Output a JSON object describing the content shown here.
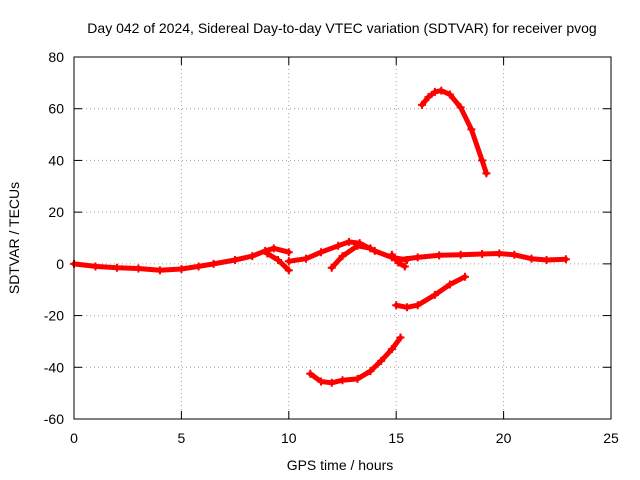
{
  "chart_data": {
    "type": "scatter",
    "title": "Day 042 of 2024, Sidereal Day-to-day VTEC variation (SDTVAR) for receiver pvog",
    "xlabel": "GPS time / hours",
    "ylabel": "SDTVAR / TECUs",
    "xlim": [
      0,
      25
    ],
    "ylim": [
      -60,
      80
    ],
    "xticks": [
      0,
      5,
      10,
      15,
      20,
      25
    ],
    "yticks": [
      -60,
      -40,
      -20,
      0,
      20,
      40,
      60,
      80
    ],
    "grid": true,
    "legend": "none",
    "series_color": "#ff0000",
    "series": [
      {
        "name": "baseline-early",
        "points": [
          [
            0.0,
            0.0
          ],
          [
            1.0,
            -1.0
          ],
          [
            2.0,
            -1.5
          ],
          [
            3.0,
            -1.8
          ],
          [
            4.0,
            -2.5
          ],
          [
            5.0,
            -2.0
          ],
          [
            5.8,
            -1.0
          ],
          [
            6.5,
            0.0
          ],
          [
            7.5,
            1.5
          ],
          [
            8.3,
            3.0
          ],
          [
            8.9,
            5.0
          ],
          [
            9.3,
            6.0
          ],
          [
            10.0,
            4.5
          ]
        ]
      },
      {
        "name": "dip-near-10h",
        "points": [
          [
            9.0,
            4.0
          ],
          [
            9.5,
            1.5
          ],
          [
            10.0,
            -2.5
          ]
        ]
      },
      {
        "name": "baseline-mid",
        "points": [
          [
            10.0,
            1.0
          ],
          [
            10.8,
            2.0
          ],
          [
            11.5,
            4.5
          ],
          [
            12.3,
            7.0
          ],
          [
            12.8,
            8.5
          ],
          [
            13.3,
            8.0
          ],
          [
            14.0,
            5.0
          ],
          [
            14.8,
            2.5
          ],
          [
            15.5,
            1.5
          ]
        ]
      },
      {
        "name": "branch-12h",
        "points": [
          [
            12.0,
            -1.5
          ],
          [
            12.5,
            3.0
          ],
          [
            13.2,
            7.0
          ],
          [
            13.8,
            6.0
          ]
        ]
      },
      {
        "name": "branch-15h",
        "points": [
          [
            14.8,
            3.5
          ],
          [
            15.1,
            0.5
          ],
          [
            15.4,
            -1.0
          ]
        ]
      },
      {
        "name": "baseline-late",
        "points": [
          [
            15.0,
            1.5
          ],
          [
            16.0,
            2.5
          ],
          [
            17.0,
            3.3
          ],
          [
            18.0,
            3.5
          ],
          [
            19.0,
            3.8
          ],
          [
            19.8,
            4.0
          ],
          [
            20.5,
            3.5
          ],
          [
            21.3,
            2.0
          ],
          [
            22.0,
            1.5
          ],
          [
            22.9,
            1.8
          ]
        ]
      },
      {
        "name": "arc-high",
        "points": [
          [
            16.2,
            61.5
          ],
          [
            16.5,
            64.5
          ],
          [
            16.8,
            66.5
          ],
          [
            17.1,
            67.0
          ],
          [
            17.5,
            65.5
          ],
          [
            18.0,
            60.5
          ],
          [
            18.5,
            52.0
          ],
          [
            19.0,
            40.0
          ],
          [
            19.2,
            35.0
          ]
        ]
      },
      {
        "name": "arc-low",
        "points": [
          [
            11.0,
            -42.5
          ],
          [
            11.5,
            -45.5
          ],
          [
            12.0,
            -46.0
          ],
          [
            12.5,
            -45.0
          ],
          [
            13.2,
            -44.5
          ],
          [
            13.8,
            -41.5
          ],
          [
            14.3,
            -37.5
          ],
          [
            14.8,
            -33.0
          ],
          [
            15.2,
            -28.5
          ]
        ]
      },
      {
        "name": "arc-mid-negative",
        "points": [
          [
            15.0,
            -16.0
          ],
          [
            15.5,
            -16.8
          ],
          [
            16.0,
            -16.0
          ],
          [
            16.8,
            -12.0
          ],
          [
            17.5,
            -8.0
          ],
          [
            18.2,
            -5.0
          ]
        ]
      }
    ]
  }
}
